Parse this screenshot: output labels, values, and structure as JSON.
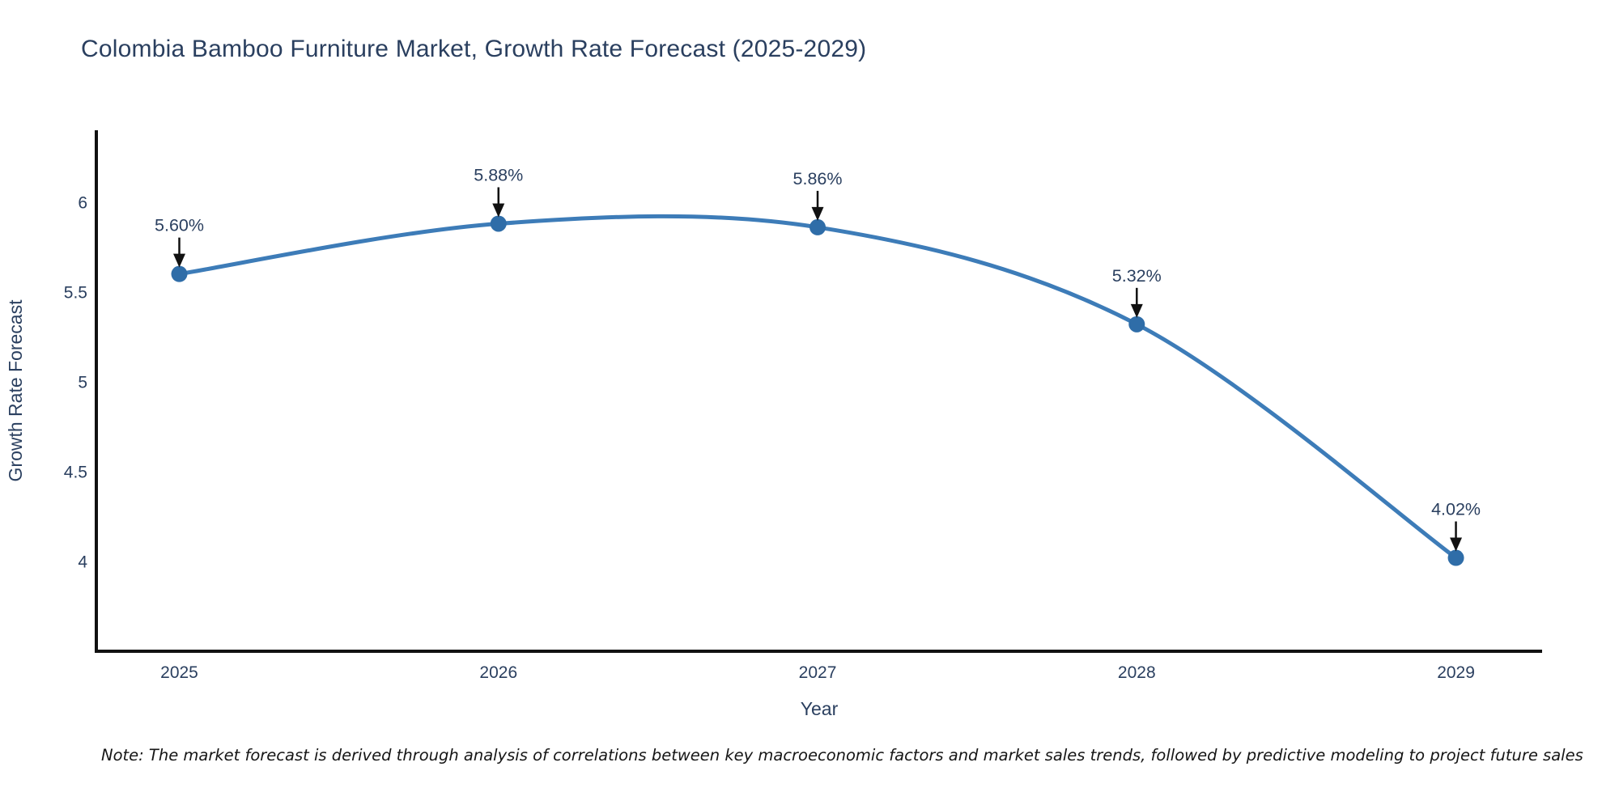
{
  "page": {
    "title": "Colombia Bamboo Furniture Market, Growth Rate Forecast (2025-2029)",
    "note": "Note: The market forecast is derived through analysis of correlations between key macroeconomic factors and market sales trends, followed by predictive modeling to project future sales"
  },
  "chart_data": {
    "type": "line",
    "title": "Colombia Bamboo Furniture Market, Growth Rate Forecast (2025-2029)",
    "xlabel": "Year",
    "ylabel": "Growth Rate Forecast",
    "x": [
      2025,
      2026,
      2027,
      2028,
      2029
    ],
    "x_tick_labels": [
      "2025",
      "2026",
      "2027",
      "2028",
      "2029"
    ],
    "series": [
      {
        "name": "Growth Rate Forecast",
        "values": [
          5.6,
          5.88,
          5.86,
          5.32,
          4.02
        ],
        "point_labels": [
          "5.60%",
          "5.88%",
          "5.86%",
          "5.32%",
          "4.02%"
        ]
      }
    ],
    "y_ticks": [
      4,
      4.5,
      5,
      5.5,
      6
    ],
    "y_tick_labels": [
      "4",
      "4.5",
      "5",
      "5.5",
      "6"
    ],
    "xlim": [
      2024.74,
      2029.27
    ],
    "ylim": [
      3.5,
      6.4
    ],
    "line_shape": "spline",
    "grid": false,
    "legend": "none",
    "annotations": "percentage value label with downward black arrow at each data point",
    "colors": {
      "line": "#3d7cb8",
      "marker": "#2f6da8",
      "text": "#2a3f5f",
      "axis": "#111111",
      "arrow": "#111111",
      "note_text": "#161616",
      "background": "#ffffff"
    }
  }
}
